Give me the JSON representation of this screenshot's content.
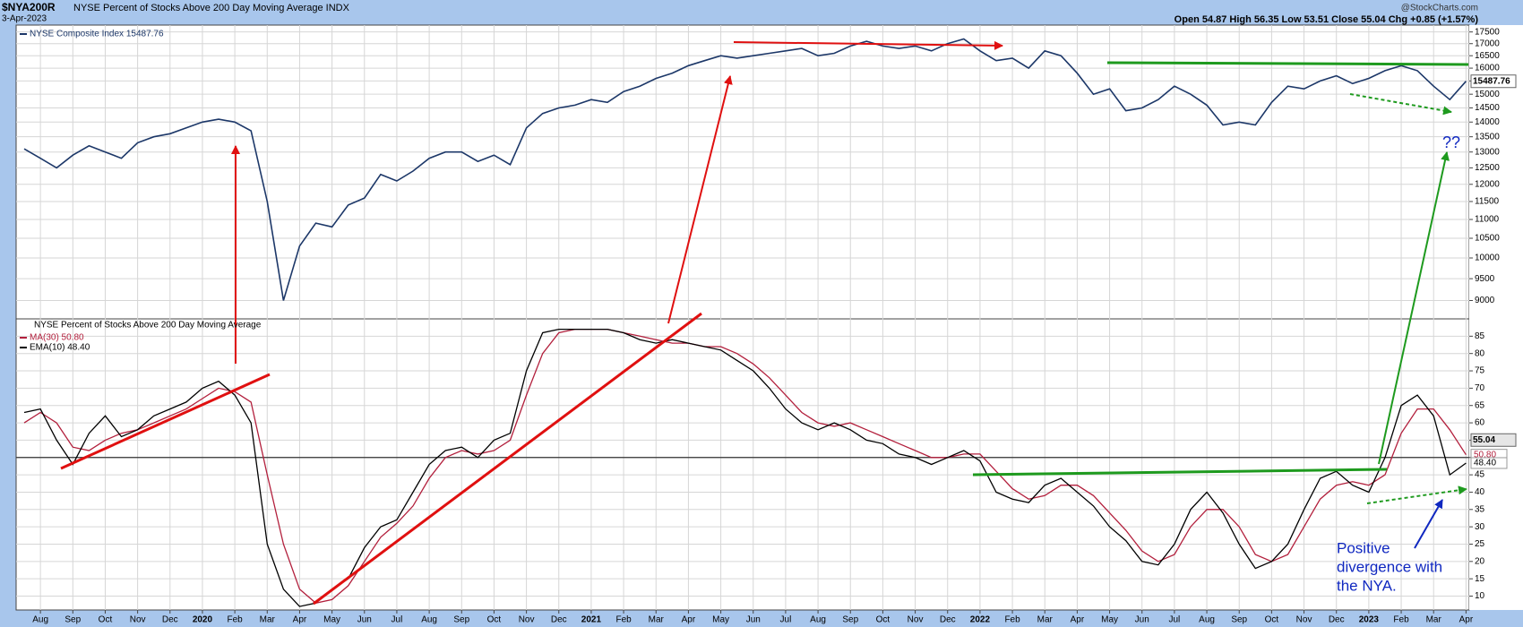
{
  "header": {
    "symbol": "$NYA200R",
    "title": "NYSE Percent of Stocks Above 200 Day Moving Average INDX",
    "date": "3-Apr-2023",
    "quote": "Open 54.87  High 56.35  Low 53.51  Close 55.04  Chg +0.85 (+1.57%)",
    "credit": "@StockCharts.com"
  },
  "chart_data": [
    {
      "type": "line",
      "log_scale": true,
      "grid": true,
      "x": [
        -0.5,
        0,
        0.5,
        1,
        1.5,
        2,
        2.5,
        3,
        3.5,
        4,
        4.5,
        5,
        5.5,
        6,
        6.5,
        7,
        7.5,
        8,
        8.5,
        9,
        9.5,
        10,
        10.5,
        11,
        11.5,
        12,
        12.5,
        13,
        13.5,
        14,
        14.5,
        15,
        15.5,
        16,
        16.5,
        17,
        17.5,
        18,
        18.5,
        19,
        19.5,
        20,
        20.5,
        21,
        21.5,
        22,
        22.5,
        23,
        23.5,
        24,
        24.5,
        25,
        25.5,
        26,
        26.5,
        27,
        27.5,
        28,
        28.5,
        29,
        29.5,
        30,
        30.5,
        31,
        31.5,
        32,
        32.5,
        33,
        33.5,
        34,
        34.5,
        35,
        35.5,
        36,
        36.5,
        37,
        37.5,
        38,
        38.5,
        39,
        39.5,
        40,
        40.5,
        41,
        41.5,
        42,
        42.5,
        43,
        43.5,
        44
      ],
      "xlim": [
        -0.75,
        44.1
      ],
      "series": [
        {
          "name": "NYSE Composite Index 15487.76",
          "color": "#1c3768",
          "values": [
            13100,
            12800,
            12500,
            12900,
            13200,
            13000,
            12800,
            13300,
            13500,
            13600,
            13800,
            14000,
            14100,
            14000,
            13700,
            11500,
            9000,
            10300,
            10900,
            10800,
            11400,
            11600,
            12300,
            12100,
            12400,
            12800,
            13000,
            13000,
            12700,
            12900,
            12600,
            13800,
            14300,
            14500,
            14600,
            14800,
            14700,
            15100,
            15300,
            15600,
            15800,
            16100,
            16300,
            16500,
            16400,
            16500,
            16600,
            16700,
            16800,
            16500,
            16600,
            16900,
            17100,
            16900,
            16800,
            16900,
            16700,
            17000,
            17200,
            16700,
            16300,
            16400,
            16000,
            16700,
            16500,
            15800,
            15000,
            15200,
            14400,
            14500,
            14800,
            15300,
            15000,
            14600,
            13900,
            14000,
            13900,
            14700,
            15300,
            15200,
            15500,
            15700,
            15400,
            15600,
            15900,
            16100,
            15900,
            15300,
            14800,
            15487.76
          ]
        }
      ],
      "close": 15487.76,
      "ylim": [
        8600,
        17800
      ],
      "yticks": [
        9000,
        9500,
        10000,
        10500,
        11000,
        11500,
        12000,
        12500,
        13000,
        13500,
        14000,
        14500,
        15000,
        15500,
        16000,
        16500,
        17000,
        17500
      ],
      "annotations": [
        "??"
      ]
    },
    {
      "type": "line",
      "grid": true,
      "title": "NYSE Percent of Stocks Above 200 Day Moving Average",
      "x": [
        -0.5,
        0,
        0.5,
        1,
        1.5,
        2,
        2.5,
        3,
        3.5,
        4,
        4.5,
        5,
        5.5,
        6,
        6.5,
        7,
        7.5,
        8,
        8.5,
        9,
        9.5,
        10,
        10.5,
        11,
        11.5,
        12,
        12.5,
        13,
        13.5,
        14,
        14.5,
        15,
        15.5,
        16,
        16.5,
        17,
        17.5,
        18,
        18.5,
        19,
        19.5,
        20,
        20.5,
        21,
        21.5,
        22,
        22.5,
        23,
        23.5,
        24,
        24.5,
        25,
        25.5,
        26,
        26.5,
        27,
        27.5,
        28,
        28.5,
        29,
        29.5,
        30,
        30.5,
        31,
        31.5,
        32,
        32.5,
        33,
        33.5,
        34,
        34.5,
        35,
        35.5,
        36,
        36.5,
        37,
        37.5,
        38,
        38.5,
        39,
        39.5,
        40,
        40.5,
        41,
        41.5,
        42,
        42.5,
        43,
        43.5,
        44
      ],
      "xlim": [
        -0.75,
        44.1
      ],
      "xticks": [
        {
          "value": 0,
          "label": "Aug"
        },
        {
          "value": 1,
          "label": "Sep"
        },
        {
          "value": 2,
          "label": "Oct"
        },
        {
          "value": 3,
          "label": "Nov"
        },
        {
          "value": 4,
          "label": "Dec"
        },
        {
          "value": 5,
          "label": "2020"
        },
        {
          "value": 6,
          "label": "Feb"
        },
        {
          "value": 7,
          "label": "Mar"
        },
        {
          "value": 8,
          "label": "Apr"
        },
        {
          "value": 9,
          "label": "May"
        },
        {
          "value": 10,
          "label": "Jun"
        },
        {
          "value": 11,
          "label": "Jul"
        },
        {
          "value": 12,
          "label": "Aug"
        },
        {
          "value": 13,
          "label": "Sep"
        },
        {
          "value": 14,
          "label": "Oct"
        },
        {
          "value": 15,
          "label": "Nov"
        },
        {
          "value": 16,
          "label": "Dec"
        },
        {
          "value": 17,
          "label": "2021"
        },
        {
          "value": 18,
          "label": "Feb"
        },
        {
          "value": 19,
          "label": "Mar"
        },
        {
          "value": 20,
          "label": "Apr"
        },
        {
          "value": 21,
          "label": "May"
        },
        {
          "value": 22,
          "label": "Jun"
        },
        {
          "value": 23,
          "label": "Jul"
        },
        {
          "value": 24,
          "label": "Aug"
        },
        {
          "value": 25,
          "label": "Sep"
        },
        {
          "value": 26,
          "label": "Oct"
        },
        {
          "value": 27,
          "label": "Nov"
        },
        {
          "value": 28,
          "label": "Dec"
        },
        {
          "value": 29,
          "label": "2022"
        },
        {
          "value": 30,
          "label": "Feb"
        },
        {
          "value": 31,
          "label": "Mar"
        },
        {
          "value": 32,
          "label": "Apr"
        },
        {
          "value": 33,
          "label": "May"
        },
        {
          "value": 34,
          "label": "Jun"
        },
        {
          "value": 35,
          "label": "Jul"
        },
        {
          "value": 36,
          "label": "Aug"
        },
        {
          "value": 37,
          "label": "Sep"
        },
        {
          "value": 38,
          "label": "Oct"
        },
        {
          "value": 39,
          "label": "Nov"
        },
        {
          "value": 40,
          "label": "Dec"
        },
        {
          "value": 41,
          "label": "2023"
        },
        {
          "value": 42,
          "label": "Feb"
        },
        {
          "value": 43,
          "label": "Mar"
        },
        {
          "value": 44,
          "label": "Apr"
        }
      ],
      "series": [
        {
          "name": "MA(30) 50.80",
          "color": "#b21f3c",
          "end_label": "50.80",
          "values": [
            60,
            63,
            60,
            53,
            52,
            55,
            57,
            58,
            60,
            62,
            64,
            67,
            70,
            69,
            66,
            45,
            25,
            12,
            8,
            9,
            13,
            20,
            27,
            31,
            36,
            44,
            50,
            52,
            51,
            52,
            55,
            68,
            80,
            86,
            87,
            87,
            87,
            86,
            85,
            84,
            83,
            83,
            82,
            82,
            80,
            77,
            73,
            68,
            63,
            60,
            59,
            60,
            58,
            56,
            54,
            52,
            50,
            50,
            51,
            51,
            46,
            41,
            38,
            39,
            42,
            42,
            39,
            34,
            29,
            23,
            20,
            22,
            30,
            35,
            35,
            30,
            22,
            20,
            22,
            30,
            38,
            42,
            43,
            42,
            45,
            57,
            64,
            64,
            58,
            50.8
          ]
        },
        {
          "name": "EMA(10) 48.40",
          "color": "#000000",
          "end_label": "48.40",
          "values": [
            63,
            64,
            55,
            48,
            57,
            62,
            56,
            58,
            62,
            64,
            66,
            70,
            72,
            68,
            60,
            25,
            12,
            7,
            8,
            12,
            15,
            24,
            30,
            32,
            40,
            48,
            52,
            53,
            50,
            55,
            57,
            75,
            86,
            87,
            87,
            87,
            87,
            86,
            84,
            83,
            84,
            83,
            82,
            81,
            78,
            75,
            70,
            64,
            60,
            58,
            60,
            58,
            55,
            54,
            51,
            50,
            48,
            50,
            52,
            49,
            40,
            38,
            37,
            42,
            44,
            40,
            36,
            30,
            26,
            20,
            19,
            25,
            35,
            40,
            34,
            25,
            18,
            20,
            25,
            35,
            44,
            46,
            42,
            40,
            50,
            65,
            68,
            62,
            45,
            48.4
          ]
        }
      ],
      "close": 55.04,
      "reference_line": 50,
      "ylim": [
        6,
        90
      ],
      "yticks": [
        10,
        15,
        20,
        25,
        30,
        35,
        40,
        45,
        50,
        55,
        60,
        65,
        70,
        75,
        80,
        85
      ],
      "annotations": [
        "Positive",
        "divergence with",
        "the NYA."
      ]
    }
  ]
}
